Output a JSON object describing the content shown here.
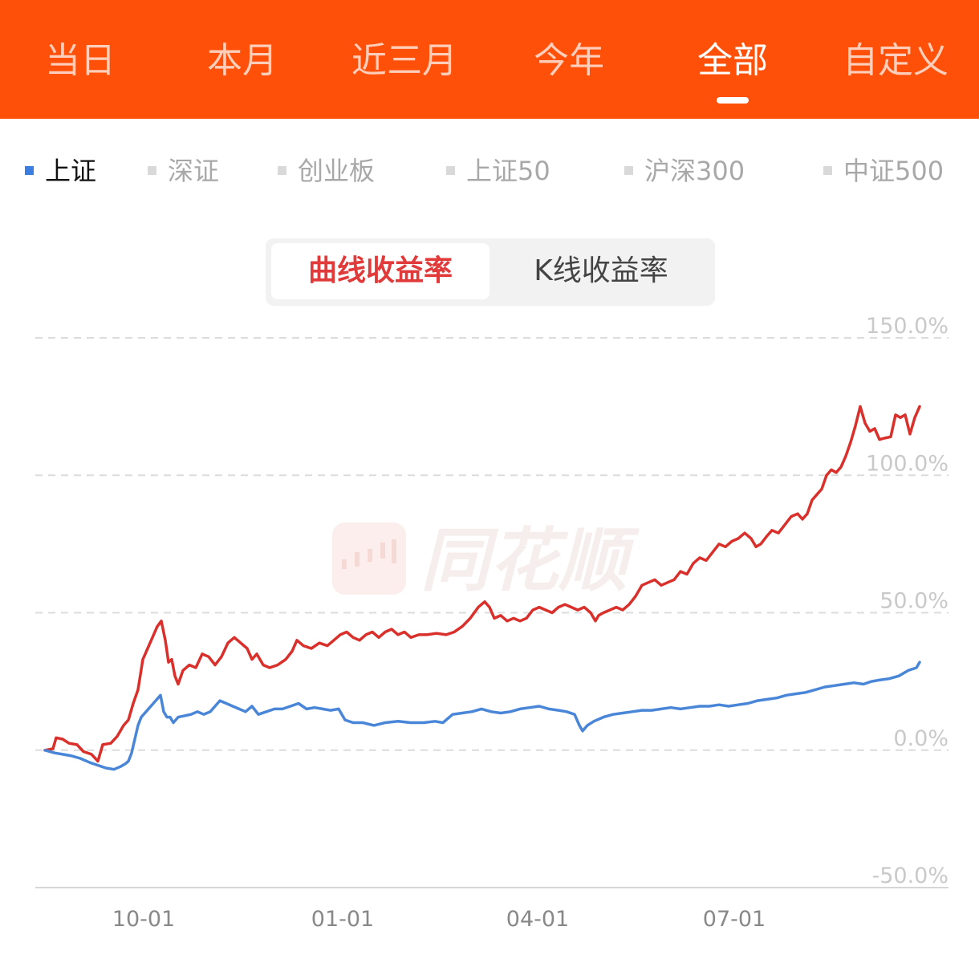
{
  "header": {
    "tabs": [
      {
        "label": "当日",
        "active": false
      },
      {
        "label": "本月",
        "active": false
      },
      {
        "label": "近三月",
        "active": false
      },
      {
        "label": "今年",
        "active": false
      },
      {
        "label": "全部",
        "active": true
      },
      {
        "label": "自定义",
        "active": false
      }
    ],
    "background_color": "#fe5008"
  },
  "indices": [
    {
      "label": "上证",
      "active": true
    },
    {
      "label": "深证",
      "active": false
    },
    {
      "label": "创业板",
      "active": false
    },
    {
      "label": "上证50",
      "active": false
    },
    {
      "label": "沪深300",
      "active": false
    },
    {
      "label": "中证500",
      "active": false
    }
  ],
  "segment": {
    "options": [
      "曲线收益率",
      "K线收益率"
    ],
    "selected": "曲线收益率"
  },
  "watermark": {
    "text": "同花顺",
    "icon": "candlestick-logo-icon"
  },
  "chart_data": {
    "type": "line",
    "title": "",
    "xlabel": "",
    "ylabel": "",
    "y_unit": "%",
    "ylim": [
      -50,
      150
    ],
    "yticks": [
      "150.0%",
      "100.0%",
      "50.0%",
      "0.0%",
      "-50.0%"
    ],
    "xticks": [
      {
        "label": "10-01",
        "t": 0.123
      },
      {
        "label": "01-01",
        "t": 0.371
      },
      {
        "label": "04-01",
        "t": 0.614
      },
      {
        "label": "07-01",
        "t": 0.859
      }
    ],
    "grid": true,
    "series": [
      {
        "color": "#d9302c",
        "points": [
          [
            0.0,
            0.0
          ],
          [
            0.01,
            0.5
          ],
          [
            0.014,
            4.5
          ],
          [
            0.022,
            4.0
          ],
          [
            0.03,
            2.5
          ],
          [
            0.04,
            2.0
          ],
          [
            0.048,
            -0.5
          ],
          [
            0.058,
            -1.5
          ],
          [
            0.066,
            -4.0
          ],
          [
            0.072,
            2.0
          ],
          [
            0.082,
            2.5
          ],
          [
            0.09,
            5.0
          ],
          [
            0.098,
            9.0
          ],
          [
            0.104,
            11.0
          ],
          [
            0.11,
            17.0
          ],
          [
            0.116,
            22.0
          ],
          [
            0.122,
            33.0
          ],
          [
            0.128,
            37.0
          ],
          [
            0.134,
            41.0
          ],
          [
            0.14,
            45.0
          ],
          [
            0.145,
            47.0
          ],
          [
            0.15,
            40.0
          ],
          [
            0.154,
            32.0
          ],
          [
            0.158,
            33.0
          ],
          [
            0.162,
            27.0
          ],
          [
            0.166,
            24.0
          ],
          [
            0.172,
            29.0
          ],
          [
            0.18,
            31.0
          ],
          [
            0.188,
            30.0
          ],
          [
            0.196,
            35.0
          ],
          [
            0.204,
            34.0
          ],
          [
            0.212,
            31.0
          ],
          [
            0.22,
            34.0
          ],
          [
            0.228,
            39.0
          ],
          [
            0.236,
            41.0
          ],
          [
            0.244,
            39.0
          ],
          [
            0.252,
            37.0
          ],
          [
            0.258,
            33.0
          ],
          [
            0.264,
            35.0
          ],
          [
            0.272,
            31.0
          ],
          [
            0.28,
            30.0
          ],
          [
            0.29,
            31.0
          ],
          [
            0.3,
            33.0
          ],
          [
            0.308,
            36.0
          ],
          [
            0.314,
            40.0
          ],
          [
            0.322,
            38.0
          ],
          [
            0.332,
            37.0
          ],
          [
            0.342,
            39.0
          ],
          [
            0.352,
            38.0
          ],
          [
            0.36,
            40.0
          ],
          [
            0.368,
            42.0
          ],
          [
            0.376,
            43.0
          ],
          [
            0.384,
            41.0
          ],
          [
            0.392,
            40.0
          ],
          [
            0.4,
            42.0
          ],
          [
            0.408,
            43.0
          ],
          [
            0.416,
            41.0
          ],
          [
            0.424,
            43.0
          ],
          [
            0.432,
            44.0
          ],
          [
            0.44,
            42.0
          ],
          [
            0.448,
            43.0
          ],
          [
            0.456,
            41.0
          ],
          [
            0.466,
            42.0
          ],
          [
            0.476,
            42.0
          ],
          [
            0.488,
            42.5
          ],
          [
            0.5,
            42.0
          ],
          [
            0.51,
            43.0
          ],
          [
            0.52,
            45.0
          ],
          [
            0.53,
            48.0
          ],
          [
            0.54,
            52.0
          ],
          [
            0.548,
            54.0
          ],
          [
            0.554,
            52.0
          ],
          [
            0.56,
            48.0
          ],
          [
            0.568,
            49.0
          ],
          [
            0.576,
            47.0
          ],
          [
            0.584,
            48.0
          ],
          [
            0.592,
            47.0
          ],
          [
            0.6,
            48.0
          ],
          [
            0.608,
            51.0
          ],
          [
            0.616,
            52.0
          ],
          [
            0.624,
            51.0
          ],
          [
            0.632,
            50.0
          ],
          [
            0.64,
            52.0
          ],
          [
            0.648,
            53.0
          ],
          [
            0.656,
            52.0
          ],
          [
            0.664,
            51.0
          ],
          [
            0.672,
            52.0
          ],
          [
            0.68,
            50.0
          ],
          [
            0.686,
            47.0
          ],
          [
            0.69,
            49.0
          ],
          [
            0.696,
            50.0
          ],
          [
            0.704,
            51.0
          ],
          [
            0.712,
            52.0
          ],
          [
            0.72,
            51.0
          ],
          [
            0.728,
            53.0
          ],
          [
            0.736,
            56.0
          ],
          [
            0.744,
            60.0
          ],
          [
            0.752,
            61.0
          ],
          [
            0.76,
            62.0
          ],
          [
            0.768,
            60.0
          ],
          [
            0.776,
            61.0
          ],
          [
            0.784,
            62.0
          ],
          [
            0.792,
            65.0
          ],
          [
            0.8,
            64.0
          ],
          [
            0.808,
            68.0
          ],
          [
            0.816,
            70.0
          ],
          [
            0.824,
            69.0
          ],
          [
            0.832,
            72.0
          ],
          [
            0.84,
            75.0
          ],
          [
            0.848,
            74.0
          ],
          [
            0.856,
            76.0
          ],
          [
            0.864,
            77.0
          ],
          [
            0.872,
            79.0
          ],
          [
            0.88,
            77.0
          ],
          [
            0.886,
            74.0
          ],
          [
            0.892,
            75.0
          ],
          [
            0.9,
            78.0
          ],
          [
            0.906,
            80.0
          ],
          [
            0.914,
            79.0
          ],
          [
            0.922,
            82.0
          ],
          [
            0.93,
            85.0
          ],
          [
            0.938,
            86.0
          ],
          [
            0.944,
            84.0
          ],
          [
            0.95,
            86.0
          ],
          [
            0.956,
            91.0
          ],
          [
            0.962,
            93.0
          ],
          [
            0.968,
            95.0
          ],
          [
            0.974,
            100.0
          ],
          [
            0.98,
            102.0
          ],
          [
            0.986,
            101.0
          ],
          [
            0.992,
            103.0
          ],
          [
            0.998,
            107.0
          ],
          [
            1.004,
            112.0
          ],
          [
            1.01,
            118.0
          ],
          [
            1.016,
            125.0
          ],
          [
            1.022,
            119.0
          ],
          [
            1.028,
            116.0
          ],
          [
            1.034,
            117.0
          ],
          [
            1.04,
            113.0
          ],
          [
            1.046,
            113.5
          ],
          [
            1.054,
            114.0
          ],
          [
            1.06,
            122.0
          ],
          [
            1.066,
            121.0
          ],
          [
            1.072,
            122.0
          ],
          [
            1.078,
            115.0
          ],
          [
            1.084,
            121.0
          ],
          [
            1.09,
            125.0
          ]
        ]
      },
      {
        "color": "#4a86d8",
        "points": [
          [
            0.0,
            0.0
          ],
          [
            0.012,
            -1.0
          ],
          [
            0.022,
            -1.5
          ],
          [
            0.032,
            -2.0
          ],
          [
            0.044,
            -3.0
          ],
          [
            0.056,
            -4.5
          ],
          [
            0.066,
            -5.5
          ],
          [
            0.076,
            -6.5
          ],
          [
            0.086,
            -7.0
          ],
          [
            0.094,
            -6.0
          ],
          [
            0.1,
            -5.0
          ],
          [
            0.104,
            -4.0
          ],
          [
            0.108,
            -1.0
          ],
          [
            0.112,
            4.0
          ],
          [
            0.116,
            9.0
          ],
          [
            0.12,
            12.0
          ],
          [
            0.126,
            14.0
          ],
          [
            0.132,
            16.0
          ],
          [
            0.138,
            18.0
          ],
          [
            0.144,
            20.0
          ],
          [
            0.148,
            14.0
          ],
          [
            0.152,
            12.0
          ],
          [
            0.156,
            12.0
          ],
          [
            0.16,
            10.0
          ],
          [
            0.166,
            12.0
          ],
          [
            0.174,
            12.5
          ],
          [
            0.182,
            13.0
          ],
          [
            0.19,
            14.0
          ],
          [
            0.198,
            13.0
          ],
          [
            0.206,
            14.0
          ],
          [
            0.212,
            16.0
          ],
          [
            0.218,
            18.0
          ],
          [
            0.226,
            17.0
          ],
          [
            0.234,
            16.0
          ],
          [
            0.242,
            15.0
          ],
          [
            0.25,
            14.0
          ],
          [
            0.258,
            16.0
          ],
          [
            0.266,
            13.0
          ],
          [
            0.276,
            14.0
          ],
          [
            0.286,
            15.0
          ],
          [
            0.296,
            15.0
          ],
          [
            0.306,
            16.0
          ],
          [
            0.316,
            17.0
          ],
          [
            0.326,
            15.0
          ],
          [
            0.336,
            15.5
          ],
          [
            0.346,
            15.0
          ],
          [
            0.356,
            14.5
          ],
          [
            0.366,
            15.0
          ],
          [
            0.374,
            11.0
          ],
          [
            0.384,
            10.0
          ],
          [
            0.396,
            10.0
          ],
          [
            0.41,
            9.0
          ],
          [
            0.424,
            10.0
          ],
          [
            0.44,
            10.5
          ],
          [
            0.456,
            10.0
          ],
          [
            0.472,
            10.0
          ],
          [
            0.486,
            10.5
          ],
          [
            0.496,
            10.0
          ],
          [
            0.508,
            13.0
          ],
          [
            0.52,
            13.5
          ],
          [
            0.532,
            14.0
          ],
          [
            0.544,
            15.0
          ],
          [
            0.556,
            14.0
          ],
          [
            0.568,
            13.5
          ],
          [
            0.58,
            14.0
          ],
          [
            0.592,
            15.0
          ],
          [
            0.604,
            15.5
          ],
          [
            0.616,
            16.0
          ],
          [
            0.628,
            15.0
          ],
          [
            0.64,
            14.5
          ],
          [
            0.65,
            14.0
          ],
          [
            0.66,
            13.0
          ],
          [
            0.666,
            9.0
          ],
          [
            0.67,
            7.0
          ],
          [
            0.676,
            9.0
          ],
          [
            0.684,
            10.5
          ],
          [
            0.696,
            12.0
          ],
          [
            0.708,
            13.0
          ],
          [
            0.72,
            13.5
          ],
          [
            0.732,
            14.0
          ],
          [
            0.744,
            14.5
          ],
          [
            0.756,
            14.5
          ],
          [
            0.768,
            15.0
          ],
          [
            0.78,
            15.5
          ],
          [
            0.792,
            15.0
          ],
          [
            0.804,
            15.5
          ],
          [
            0.816,
            16.0
          ],
          [
            0.828,
            16.0
          ],
          [
            0.84,
            16.5
          ],
          [
            0.852,
            16.0
          ],
          [
            0.864,
            16.5
          ],
          [
            0.876,
            17.0
          ],
          [
            0.888,
            18.0
          ],
          [
            0.9,
            18.5
          ],
          [
            0.912,
            19.0
          ],
          [
            0.924,
            20.0
          ],
          [
            0.936,
            20.5
          ],
          [
            0.948,
            21.0
          ],
          [
            0.96,
            22.0
          ],
          [
            0.972,
            23.0
          ],
          [
            0.984,
            23.5
          ],
          [
            0.996,
            24.0
          ],
          [
            1.008,
            24.5
          ],
          [
            1.02,
            24.0
          ],
          [
            1.03,
            25.0
          ],
          [
            1.04,
            25.5
          ],
          [
            1.052,
            26.0
          ],
          [
            1.064,
            27.0
          ],
          [
            1.076,
            29.0
          ],
          [
            1.086,
            30.0
          ],
          [
            1.09,
            32.0
          ]
        ]
      }
    ]
  }
}
